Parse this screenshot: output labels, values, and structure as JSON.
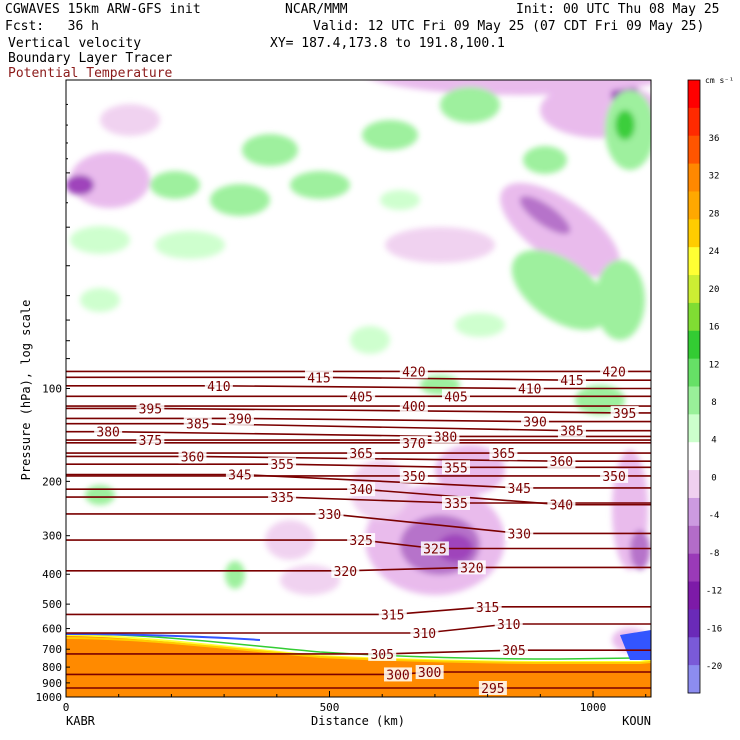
{
  "header": {
    "model": "CGWAVES 15km ARW-GFS init",
    "center": "NCAR/MMM",
    "init": "Init: 00 UTC Thu 08 May 25",
    "fcst": "Fcst:   36 h",
    "valid": "Valid: 12 UTC Fri 09 May 25 (07 CDT Fri 09 May 25)",
    "field1": "Vertical velocity",
    "field2": "Boundary Layer Tracer",
    "field3": "Potential Temperature",
    "xy": "XY= 187.4,173.8 to 191.8,100.1"
  },
  "colors": {
    "field3": "#8b1a1a",
    "theta_line": "#7a0000"
  },
  "chart_data": {
    "type": "cross-section",
    "ylabel": "Pressure (hPa), log scale",
    "xlabel": "Distance (km)",
    "x_ticks": [
      "0",
      "500",
      "1000"
    ],
    "y_ticks": [
      "100",
      "200",
      "300",
      "400",
      "500",
      "600",
      "700",
      "800",
      "900",
      "1000"
    ],
    "x_range_km": [
      0,
      1110
    ],
    "y_range_hpa": [
      1000,
      10
    ],
    "left_station": "KABR",
    "right_station": "KOUN",
    "colorbar": {
      "units": "cm s⁻¹",
      "levels": [
        -20,
        -16,
        -12,
        -8,
        -4,
        0,
        4,
        8,
        12,
        16,
        20,
        24,
        28,
        32,
        36
      ],
      "colors": [
        "#8c8cf0",
        "#7a5ad8",
        "#6a2ab8",
        "#7d1aa8",
        "#9a3ab8",
        "#b36cc8",
        "#cc9ae0",
        "#f0d0f0",
        "#ffffff",
        "#ccffcc",
        "#99f099",
        "#66e066",
        "#33cc33",
        "#80dd33",
        "#ccee33",
        "#ffff33",
        "#ffcc00",
        "#ffa800",
        "#ff8800",
        "#ff5500",
        "#ff2a00",
        "#ff0000"
      ],
      "labels": [
        "36",
        "32",
        "28",
        "24",
        "20",
        "16",
        "12",
        "8",
        "4",
        "0",
        "-4",
        "-8",
        "-12",
        "-16",
        "-20"
      ]
    },
    "theta_labels": [
      {
        "v": "420",
        "km": 660,
        "p": 88
      },
      {
        "v": "420",
        "km": 1040,
        "p": 88
      },
      {
        "v": "415",
        "km": 480,
        "p": 92
      },
      {
        "v": "415",
        "km": 960,
        "p": 94
      },
      {
        "v": "410",
        "km": 290,
        "p": 98
      },
      {
        "v": "410",
        "km": 880,
        "p": 100
      },
      {
        "v": "405",
        "km": 560,
        "p": 106
      },
      {
        "v": "405",
        "km": 740,
        "p": 106
      },
      {
        "v": "400",
        "km": 660,
        "p": 114
      },
      {
        "v": "395",
        "km": 160,
        "p": 116
      },
      {
        "v": "395",
        "km": 1060,
        "p": 120
      },
      {
        "v": "390",
        "km": 330,
        "p": 125
      },
      {
        "v": "390",
        "km": 890,
        "p": 128
      },
      {
        "v": "385",
        "km": 250,
        "p": 130
      },
      {
        "v": "385",
        "km": 960,
        "p": 137
      },
      {
        "v": "380",
        "km": 80,
        "p": 138
      },
      {
        "v": "380",
        "km": 720,
        "p": 143
      },
      {
        "v": "375",
        "km": 160,
        "p": 147
      },
      {
        "v": "370",
        "km": 660,
        "p": 150
      },
      {
        "v": "365",
        "km": 560,
        "p": 162
      },
      {
        "v": "365",
        "km": 830,
        "p": 162
      },
      {
        "v": "360",
        "km": 240,
        "p": 166
      },
      {
        "v": "360",
        "km": 940,
        "p": 172
      },
      {
        "v": "355",
        "km": 410,
        "p": 176
      },
      {
        "v": "355",
        "km": 740,
        "p": 180
      },
      {
        "v": "350",
        "km": 660,
        "p": 192
      },
      {
        "v": "350",
        "km": 1040,
        "p": 192
      },
      {
        "v": "345",
        "km": 330,
        "p": 190
      },
      {
        "v": "345",
        "km": 860,
        "p": 210
      },
      {
        "v": "340",
        "km": 560,
        "p": 212
      },
      {
        "v": "340",
        "km": 940,
        "p": 238
      },
      {
        "v": "335",
        "km": 410,
        "p": 225
      },
      {
        "v": "335",
        "km": 740,
        "p": 235
      },
      {
        "v": "330",
        "km": 500,
        "p": 255
      },
      {
        "v": "330",
        "km": 860,
        "p": 295
      },
      {
        "v": "325",
        "km": 560,
        "p": 310
      },
      {
        "v": "325",
        "km": 700,
        "p": 330
      },
      {
        "v": "320",
        "km": 530,
        "p": 390
      },
      {
        "v": "320",
        "km": 770,
        "p": 380
      },
      {
        "v": "315",
        "km": 620,
        "p": 540
      },
      {
        "v": "315",
        "km": 800,
        "p": 510
      },
      {
        "v": "310",
        "km": 680,
        "p": 620
      },
      {
        "v": "310",
        "km": 840,
        "p": 580
      },
      {
        "v": "305",
        "km": 600,
        "p": 725
      },
      {
        "v": "305",
        "km": 850,
        "p": 705
      },
      {
        "v": "300",
        "km": 630,
        "p": 845
      },
      {
        "v": "300",
        "km": 690,
        "p": 830
      },
      {
        "v": "295",
        "km": 810,
        "p": 935
      }
    ]
  }
}
